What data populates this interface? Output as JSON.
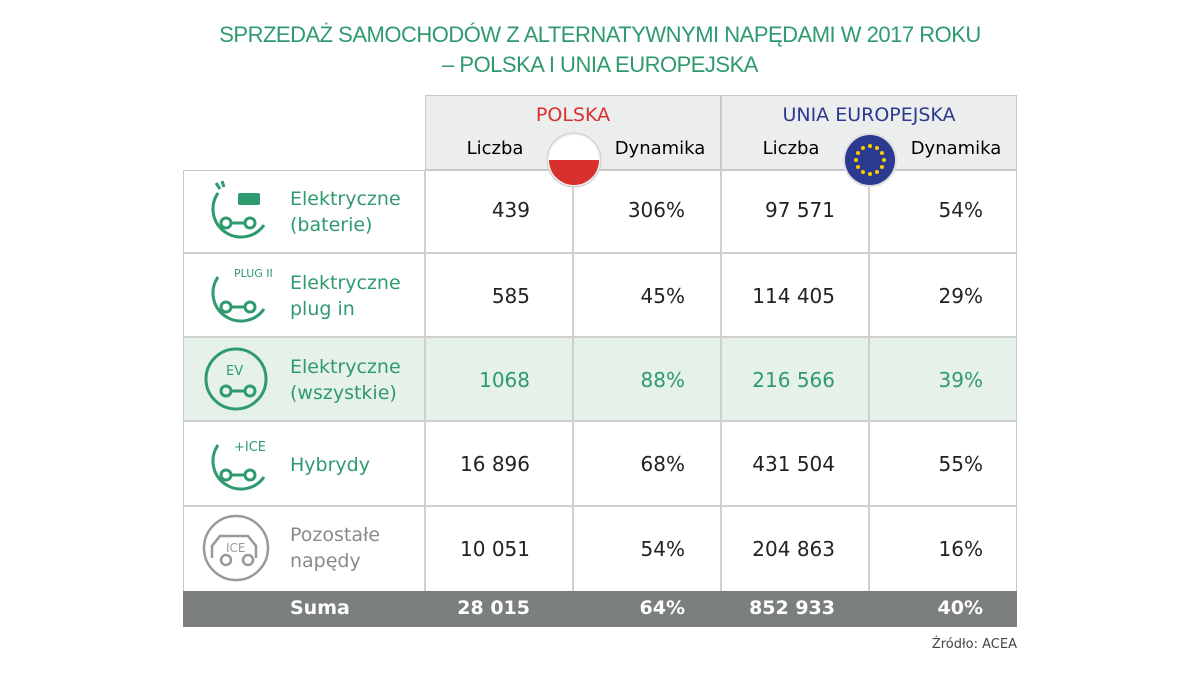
{
  "title_line1": "SPRZEDAŻ SAMOCHODÓW Z ALTERNATYWNYMI NAPĘDAMI W 2017 ROKU",
  "title_line2": "– POLSKA I UNIA EUROPEJSKA",
  "groups": [
    {
      "name": "POLSKA",
      "color": "#d8302f"
    },
    {
      "name": "UNIA EUROPEJSKA",
      "color": "#2b3990"
    }
  ],
  "col_liczba": "Liczba",
  "col_dynamika": "Dynamika",
  "icon_texts": {
    "plug": "PLUG IN",
    "ev": "EV",
    "hybrid": "+ICE",
    "ice": "ICE"
  },
  "rows": [
    {
      "label1": "Elektryczne",
      "label2": "(baterie)",
      "pl_n": "439",
      "pl_d": "306%",
      "eu_n": "97 571",
      "eu_d": "54%"
    },
    {
      "label1": "Elektryczne",
      "label2": "plug in",
      "pl_n": "585",
      "pl_d": "45%",
      "eu_n": "114 405",
      "eu_d": "29%"
    },
    {
      "label1": "Elektryczne",
      "label2": "(wszystkie)",
      "pl_n": "1068",
      "pl_d": "88%",
      "eu_n": "216 566",
      "eu_d": "39%"
    },
    {
      "label1": "Hybrydy",
      "label2": "",
      "pl_n": "16 896",
      "pl_d": "68%",
      "eu_n": "431 504",
      "eu_d": "55%"
    },
    {
      "label1": "Pozostałe",
      "label2": "napędy",
      "pl_n": "10 051",
      "pl_d": "54%",
      "eu_n": "204 863",
      "eu_d": "16%"
    }
  ],
  "sum": {
    "label": "Suma",
    "pl_n": "28 015",
    "pl_d": "64%",
    "eu_n": "852 933",
    "eu_d": "40%"
  },
  "source": "Źródło: ACEA",
  "chart_data": {
    "type": "table",
    "title": "SPRZEDAŻ SAMOCHODÓW Z ALTERNATYWNYMI NAPĘDAMI W 2017 ROKU – POLSKA I UNIA EUROPEJSKA",
    "columns": [
      "Polska Liczba",
      "Polska Dynamika",
      "UE Liczba",
      "UE Dynamika"
    ],
    "rows": [
      [
        "Elektryczne (baterie)",
        439,
        306,
        97571,
        54
      ],
      [
        "Elektryczne plug in",
        585,
        45,
        114405,
        29
      ],
      [
        "Elektryczne (wszystkie)",
        1068,
        88,
        216566,
        39
      ],
      [
        "Hybrydy",
        16896,
        68,
        431504,
        55
      ],
      [
        "Pozostałe napędy",
        10051,
        54,
        204863,
        16
      ],
      [
        "Suma",
        28015,
        64,
        852933,
        40
      ]
    ]
  }
}
